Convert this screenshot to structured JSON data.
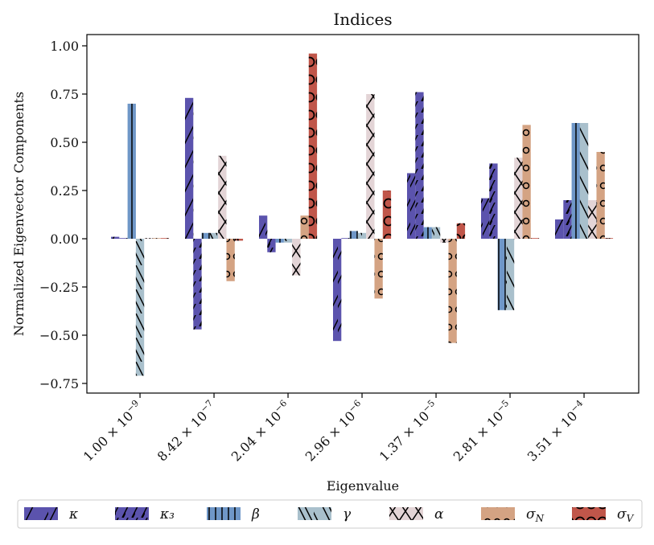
{
  "chart_data": {
    "type": "bar",
    "title": "Indices",
    "xlabel": "Eigenvalue",
    "ylabel": "Normalized Eigenvector Components",
    "ylim": [
      -0.8,
      1.05
    ],
    "yticks": [
      -0.75,
      -0.5,
      -0.25,
      0.0,
      0.25,
      0.5,
      0.75,
      1.0
    ],
    "ytick_labels": [
      "−0.75",
      "−0.50",
      "−0.25",
      "0.00",
      "0.25",
      "0.50",
      "0.75",
      "1.00"
    ],
    "grid": false,
    "legend_position": "bottom",
    "categories": [
      {
        "mantissa": "1.00",
        "exponent": "−9"
      },
      {
        "mantissa": "8.42",
        "exponent": "−7"
      },
      {
        "mantissa": "2.04",
        "exponent": "−6"
      },
      {
        "mantissa": "2.96",
        "exponent": "−6"
      },
      {
        "mantissa": "1.37",
        "exponent": "−5"
      },
      {
        "mantissa": "2.81",
        "exponent": "−5"
      },
      {
        "mantissa": "3.51",
        "exponent": "−4"
      }
    ],
    "series": [
      {
        "name": "κ",
        "color": "#5b53ad",
        "hatch": "slash",
        "values": [
          0.01,
          0.73,
          0.12,
          -0.53,
          0.34,
          0.21,
          0.1
        ]
      },
      {
        "name": "κ₃",
        "color": "#5b53ad",
        "hatch": "double-slash",
        "values": [
          0.0,
          -0.47,
          -0.07,
          0.0,
          0.76,
          0.39,
          0.2
        ]
      },
      {
        "name": "β",
        "color": "#6f97c8",
        "hatch": "vertical",
        "values": [
          0.7,
          0.03,
          -0.02,
          0.04,
          0.06,
          -0.37,
          0.6
        ]
      },
      {
        "name": "γ",
        "color": "#a9c0cc",
        "hatch": "backslash",
        "values": [
          -0.71,
          0.03,
          -0.02,
          0.03,
          0.06,
          -0.37,
          0.6
        ]
      },
      {
        "name": "α",
        "color": "#e3d4d6",
        "hatch": "cross",
        "values": [
          0.0,
          0.43,
          -0.19,
          0.75,
          -0.02,
          0.42,
          0.2
        ]
      },
      {
        "name": "σ_N",
        "color": "#d4a383",
        "hatch": "small-circles",
        "values": [
          0.0,
          -0.22,
          0.12,
          -0.31,
          -0.54,
          0.59,
          0.45
        ]
      },
      {
        "name": "σ_V",
        "color": "#c0564a",
        "hatch": "big-circles",
        "values": [
          0.0,
          -0.01,
          0.96,
          0.25,
          0.08,
          0.0,
          0.0
        ]
      }
    ]
  }
}
